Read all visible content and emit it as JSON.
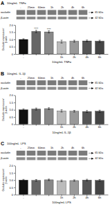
{
  "chart_data": [
    {
      "type": "bar",
      "title": "A",
      "xlabel": "10ng/mL TNFα",
      "ylabel": "Occludin expression/β-actin",
      "categories": [
        "-",
        null,
        null,
        "1h",
        "2h",
        "4h",
        "6h"
      ],
      "values": [
        1.0,
        1.55,
        1.52,
        0.85,
        0.88,
        0.9,
        0.88
      ],
      "errors": [
        0.05,
        0.08,
        0.07,
        0.1,
        0.07,
        0.06,
        0.07
      ],
      "colors": [
        "#111111",
        "#666666",
        "#888888",
        "#bbbbbb",
        "#999999",
        "#555555",
        "#444444"
      ],
      "annotations": [
        {
          "text": "****",
          "index": 1
        },
        {
          "text": "****",
          "index": 2
        }
      ],
      "ylim": [
        0,
        2.0
      ],
      "yticks": [
        0,
        0.5,
        {
          "value": 1.0,
          "label": "1.0"
        },
        1.5,
        {
          "value": 2.0,
          "label": "2.0"
        }
      ],
      "grid": false,
      "blot": {
        "conc_label": "10ng/mL",
        "time_label": "TNFα",
        "columns": [
          "-",
          "25min",
          "60min",
          "1h",
          "2h",
          "4h",
          "6h"
        ],
        "background": "#e8e8e8",
        "rows": [
          {
            "label": "occludin",
            "kda": "65 kDa",
            "color": "#7a7a7a"
          },
          {
            "label": "β-actin",
            "kda": "42 kDa",
            "color": "#8c8c8c"
          }
        ]
      }
    },
    {
      "type": "bar",
      "title": "B",
      "xlabel": "10ng/mL IL-1β",
      "ylabel": "Occludin expression/β-actin",
      "categories": [
        "-",
        null,
        null,
        "1h",
        "2h",
        "4h",
        "6h"
      ],
      "values": [
        1.0,
        1.05,
        1.08,
        0.92,
        0.9,
        0.88,
        0.9
      ],
      "errors": [
        0.06,
        0.07,
        0.06,
        0.08,
        0.06,
        0.07,
        0.07
      ],
      "colors": [
        "#111111",
        "#666666",
        "#888888",
        "#bbbbbb",
        "#999999",
        "#555555",
        "#444444"
      ],
      "ylim": [
        0,
        2.0
      ],
      "yticks": [
        0,
        0.5,
        {
          "value": 1.0,
          "label": "1.0"
        },
        1.5,
        {
          "value": 2.0,
          "label": "2.0"
        }
      ],
      "grid": false,
      "blot": {
        "conc_label": "10ng/mL",
        "time_label": "IL-1β",
        "columns": [
          "-",
          "25min",
          "60min",
          "1h",
          "2h",
          "4h",
          "6h"
        ],
        "background": "#e8e8e8",
        "rows": [
          {
            "label": "occludin",
            "kda": "65 kDa",
            "color": "#7a7a7a"
          },
          {
            "label": "β-actin",
            "kda": "42 kDa",
            "color": "#8c8c8c"
          }
        ]
      }
    },
    {
      "type": "bar",
      "title": "C",
      "xlabel": "100ng/mL LPS",
      "ylabel": "Occludin expression/β-actin",
      "categories": [
        "-",
        null,
        null,
        "1h",
        "2h",
        "4h",
        "6h"
      ],
      "values": [
        1.0,
        0.98,
        1.02,
        0.95,
        0.97,
        1.0,
        0.98
      ],
      "errors": [
        0.05,
        0.06,
        0.05,
        0.06,
        0.05,
        0.06,
        0.06
      ],
      "colors": [
        "#111111",
        "#666666",
        "#888888",
        "#bbbbbb",
        "#999999",
        "#555555",
        "#444444"
      ],
      "ylim": [
        0,
        2.0
      ],
      "yticks": [
        0,
        0.5,
        {
          "value": 1.0,
          "label": "1.0"
        },
        1.5,
        {
          "value": 2.0,
          "label": "2.0"
        }
      ],
      "grid": false,
      "blot": {
        "conc_label": "100ng/mL",
        "time_label": "LPS",
        "columns": [
          "-",
          "25min",
          "60min",
          "1h",
          "2h",
          "4h",
          "6h"
        ],
        "background": "#e8e8e8",
        "rows": [
          {
            "label": "occludin",
            "kda": "65 kDa",
            "color": "#7a7a7a"
          },
          {
            "label": "β-actin",
            "kda": "42 kDa",
            "color": "#8c8c8c"
          }
        ]
      }
    }
  ]
}
